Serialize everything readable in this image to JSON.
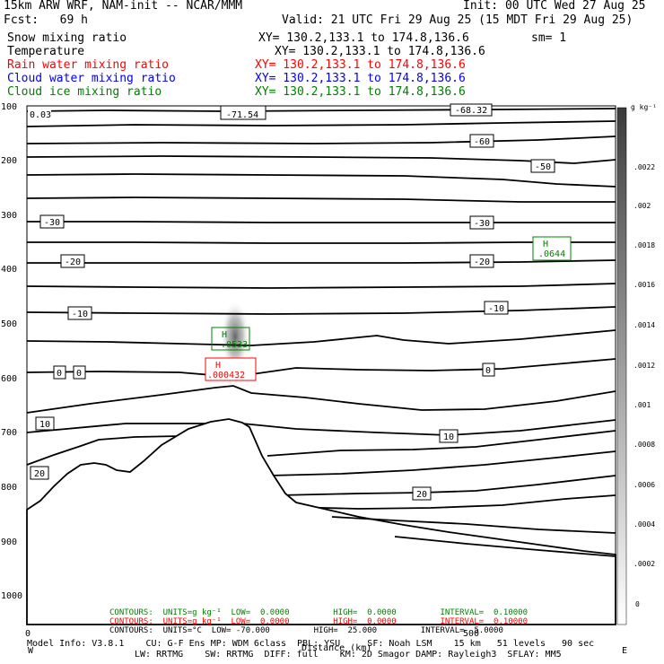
{
  "header": {
    "title": "15km ARW WRF, NAM-init -- NCAR/MMM",
    "init": "Init: 00 UTC Wed 27 Aug 25",
    "fcst": "Fcst:   69 h",
    "valid": "Valid: 21 UTC Fri 29 Aug 25 (15 MDT Fri 29 Aug 25)",
    "fields": [
      {
        "name": "Snow mixing ratio",
        "xy": "XY= 130.2,133.1 to 174.8,136.6",
        "extra": "sm= 1",
        "color": "#000000"
      },
      {
        "name": "Temperature",
        "xy": "XY= 130.2,133.1 to 174.8,136.6",
        "extra": "",
        "color": "#000000"
      },
      {
        "name": "Rain water mixing ratio",
        "xy": "XY= 130.2,133.1 to 174.8,136.6",
        "extra": "",
        "color": "#ff0000"
      },
      {
        "name": "Cloud water mixing ratio",
        "xy": "XY= 130.2,133.1 to 174.8,136.6",
        "extra": "",
        "color": "#0000ff"
      },
      {
        "name": "Cloud ice mixing ratio",
        "xy": "XY= 130.2,133.1 to 174.8,136.6",
        "extra": "",
        "color": "#008000"
      }
    ]
  },
  "axes": {
    "y_ticks": [
      "100",
      "200",
      "300",
      "400",
      "500",
      "600",
      "700",
      "800",
      "900",
      "1000"
    ],
    "x_tick_labels": [
      "0",
      "500"
    ],
    "x_label": "Distance (km)",
    "colorbar_unit": "g kg⁻¹",
    "colorbar_ticks": [
      ".0022",
      ".002",
      ".0018",
      ".0016",
      ".0014",
      ".0012",
      ".001",
      ".0008",
      ".0006",
      ".0004",
      ".0002",
      "0"
    ]
  },
  "contour_labels": [
    {
      "text": "0.03"
    },
    {
      "text": "-71.54"
    },
    {
      "text": "-68.32"
    },
    {
      "text": "-60"
    },
    {
      "text": "-50"
    },
    {
      "text": "-30"
    },
    {
      "text": "-30"
    },
    {
      "text": "-20"
    },
    {
      "text": "-20"
    },
    {
      "text": "-10"
    },
    {
      "text": "-10"
    },
    {
      "text": "0"
    },
    {
      "text": "0"
    },
    {
      "text": "0"
    },
    {
      "text": "10"
    },
    {
      "text": "10"
    },
    {
      "text": "20"
    },
    {
      "text": "20"
    }
  ],
  "extrema_boxes": [
    {
      "h": "H",
      "value": ".0644",
      "color": "#008000"
    },
    {
      "h": "H",
      "value": ".0533",
      "color": "#008000"
    },
    {
      "h": "H",
      "value": ".000432",
      "color": "#ff0000"
    }
  ],
  "footer": {
    "contours_green": "CONTOURS:  UNITS=g kg⁻¹  LOW=  0.0000         HIGH=  0.0000         INTERVAL=  0.10000",
    "contours_red": "CONTOURS:  UNITS=g kg⁻¹  LOW=  0.0000         HIGH=  0.0000         INTERVAL=  0.10000",
    "contours_black": "CONTOURS:  UNITS=°C  LOW= -70.000         HIGH=  25.000         INTERVAL=  5.0000",
    "model_info": "Model Info: V3.8.1    CU: G-F Ens MP: WDM 6class  PBL: YSU     SF: Noah LSM    15 km   51 levels   90 sec",
    "model_info2": "LW: RRTMG    SW: RRTMG  DIFF: full    KM: 2D Smagor DAMP: Rayleigh3  SFLAY: MM5",
    "corner_left": "W",
    "corner_right": "E"
  },
  "colors": {
    "contour": "#000000",
    "terrain_fill": "#ffffff",
    "ice": "#008000",
    "rain": "#ff0000"
  }
}
